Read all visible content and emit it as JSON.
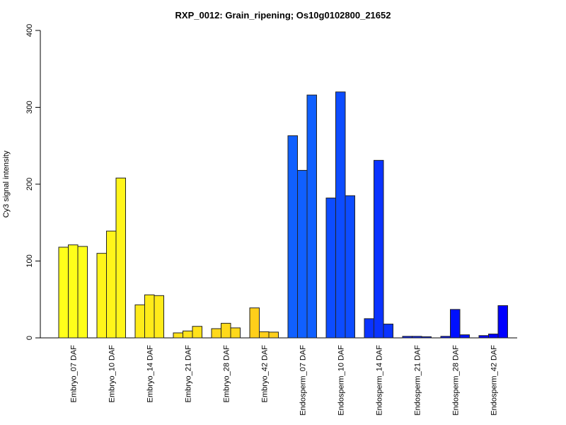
{
  "chart_data": {
    "type": "bar",
    "title": "RXP_0012: Grain_ripening; Os10g0102800_21652",
    "xlabel": "",
    "ylabel": "Cy3 signal intensity",
    "ylim": [
      0,
      400
    ],
    "yticks": [
      0,
      100,
      200,
      300,
      400
    ],
    "grid": false,
    "categories": [
      "Embryo_07 DAF",
      "Embryo_10 DAF",
      "Embryo_14 DAF",
      "Embryo_21 DAF",
      "Embryo_28 DAF",
      "Embryo_42 DAF",
      "Endosperm_07 DAF",
      "Endosperm_10 DAF",
      "Endosperm_14 DAF",
      "Endosperm_21 DAF",
      "Endosperm_28 DAF",
      "Endosperm_42 DAF"
    ],
    "replicates": [
      [
        118,
        121,
        119
      ],
      [
        110,
        139,
        208
      ],
      [
        43,
        56,
        55
      ],
      [
        6.5,
        9,
        15
      ],
      [
        12,
        19,
        13
      ],
      [
        39,
        8,
        7.5
      ],
      [
        263,
        218,
        316
      ],
      [
        182,
        320,
        185
      ],
      [
        25,
        231,
        18
      ],
      [
        2,
        2,
        1.5
      ],
      [
        2,
        37,
        4
      ],
      [
        3,
        5,
        42
      ]
    ],
    "colors": [
      "#FFFF1A",
      "#FFF51A",
      "#FFEB1A",
      "#FFE21A",
      "#FFD91A",
      "#FFCF1A",
      "#1060FF",
      "#0D4CFF",
      "#0A33FF",
      "#0520FF",
      "#0010FF",
      "#0000FF"
    ]
  }
}
